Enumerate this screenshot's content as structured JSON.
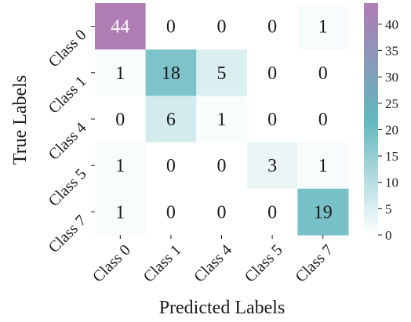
{
  "chart_data": {
    "type": "heatmap",
    "title": "",
    "xlabel": "Predicted Labels",
    "ylabel": "True Labels",
    "x_categories": [
      "Class 0",
      "Class 1",
      "Class 4",
      "Class 5",
      "Class 7"
    ],
    "y_categories": [
      "Class 0",
      "Class 1",
      "Class 4",
      "Class 5",
      "Class 7"
    ],
    "values": [
      [
        44,
        0,
        0,
        0,
        1
      ],
      [
        1,
        18,
        5,
        0,
        0
      ],
      [
        0,
        6,
        1,
        0,
        0
      ],
      [
        1,
        0,
        0,
        3,
        1
      ],
      [
        1,
        0,
        0,
        0,
        19
      ]
    ],
    "colorbar": {
      "range": [
        0,
        44
      ],
      "ticks": [
        0,
        5,
        10,
        15,
        20,
        25,
        30,
        35,
        40
      ],
      "colors": [
        "#ffffff",
        "#62b6be",
        "#b07cb4"
      ]
    }
  }
}
